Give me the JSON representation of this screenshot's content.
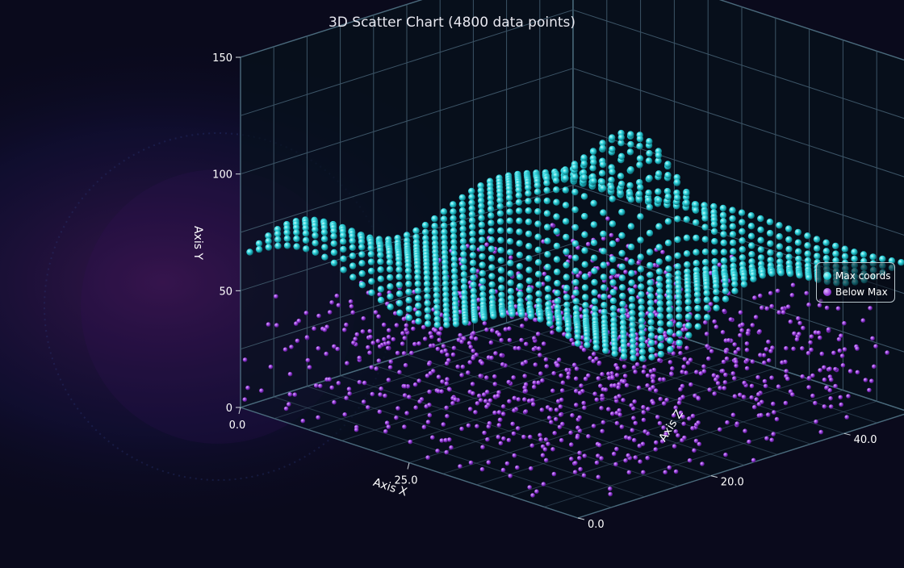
{
  "chart_data": {
    "type": "scatter",
    "title": "3D Scatter Chart (4800 data points)",
    "dimensions": 3,
    "axes": {
      "x": {
        "label": "Axis X",
        "range": [
          0,
          50
        ],
        "ticks": [
          "0.0",
          "25.0"
        ]
      },
      "y": {
        "label": "Axis Y",
        "range": [
          0,
          150
        ],
        "ticks": [
          "0",
          "50",
          "100",
          "150"
        ]
      },
      "z": {
        "label": "Axis Z",
        "range": [
          0,
          50
        ],
        "ticks": [
          "0.0",
          "20.0",
          "40.0"
        ]
      }
    },
    "grid": true,
    "legend_position": "right",
    "series": [
      {
        "name": "Max coords",
        "color": "#19c9d4",
        "count": 2400,
        "y_range": [
          42,
          104
        ]
      },
      {
        "name": "Below Max",
        "color": "#9b3fe0",
        "count": 2400,
        "y_range": [
          0,
          55
        ]
      }
    ]
  },
  "colors": {
    "background": "#0a0a1c",
    "max_series": "#19c9d4",
    "below_series": "#9b3fe0",
    "grid": "#3c5466"
  }
}
